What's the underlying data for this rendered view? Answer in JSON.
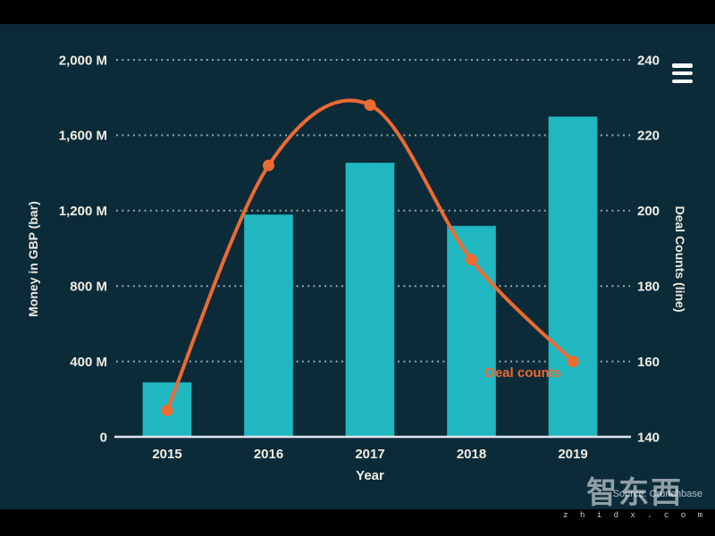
{
  "chart_data": {
    "type": "combo",
    "categories": [
      "2015",
      "2016",
      "2017",
      "2018",
      "2019"
    ],
    "series": [
      {
        "name": "Money in GBP",
        "type": "bar",
        "axis": "left",
        "color": "#20b7c1",
        "values": [
          290,
          1180,
          1455,
          1120,
          1700
        ]
      },
      {
        "name": "Deal counts",
        "type": "line",
        "axis": "right",
        "color": "#ed6a31",
        "values": [
          147,
          212,
          228,
          187,
          160
        ]
      }
    ],
    "title": "",
    "xlabel": "Year",
    "ylabel_left": "Money in GBP (bar)",
    "ylabel_right": "Deal Counts (line)",
    "yleft_range": [
      0,
      2000
    ],
    "yleft_ticks": [
      "0",
      "400 M",
      "800 M",
      "1,200 M",
      "1,600 M",
      "2,000 M"
    ],
    "yright_range": [
      140,
      240
    ],
    "yright_ticks": [
      "140",
      "160",
      "180",
      "200",
      "220",
      "240"
    ],
    "grid": "dotted horizontal gridlines, legend off",
    "annotation": "Deal counts"
  },
  "colors": {
    "background": "#0b2b39",
    "letterbox": "#000000",
    "bar": "#20b7c1",
    "line": "#ed6a31",
    "tick_text": "#f2eee4",
    "axis_line": "#dfe3ee"
  },
  "menu": {
    "icon": "hamburger-menu-icon"
  },
  "footer": {
    "source": "Source: Crunchbase"
  },
  "watermark": {
    "logo_text": "智东西",
    "url_text": "z h i d x . c o m"
  }
}
